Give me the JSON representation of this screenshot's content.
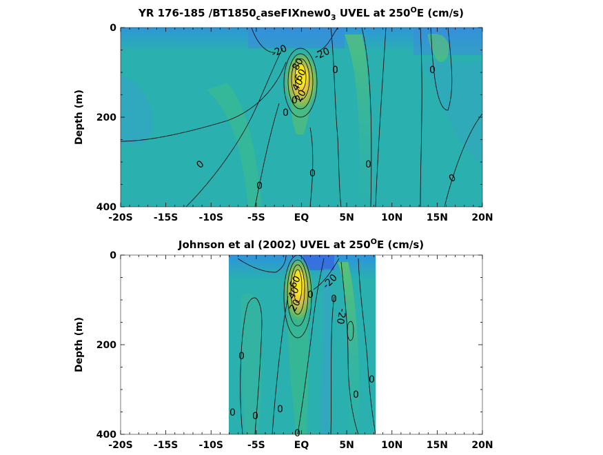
{
  "chart_data": [
    {
      "type": "heatmap",
      "title": "YR 176-185 /BT1850",
      "title_sub": "c",
      "title_mid": "aseFIXnew0",
      "title_sub2": "3",
      "title_tail": " UVEL at 250",
      "title_sup": "O",
      "title_end": "E (cm/s)",
      "ylabel": "Depth (m)",
      "x_tick_labels": [
        "-20S",
        "-15S",
        "-10S",
        "-5S",
        "EQ",
        "5N",
        "10N",
        "15N",
        "20N"
      ],
      "x_ticks": [
        -20,
        -15,
        -10,
        -5,
        0,
        5,
        10,
        15,
        20
      ],
      "y_tick_labels": [
        "0",
        "200",
        "400"
      ],
      "y_ticks": [
        0,
        200,
        400
      ],
      "xlim": [
        -20,
        20
      ],
      "ylim": [
        0,
        400
      ],
      "y_reversed": true,
      "data_extent": [
        -20,
        20
      ],
      "contour_labels": [
        "-20",
        "-20",
        "0",
        "0",
        "0",
        "0",
        "0",
        "0",
        "0",
        "0",
        "0",
        "20",
        "40",
        "60",
        "80"
      ],
      "colormap": "parula",
      "core": {
        "lat": 0,
        "depth": 110,
        "max": 100
      }
    },
    {
      "type": "heatmap",
      "title": "Johnson et al (2002) UVEL at 250",
      "title_sup": "O",
      "title_end": "E (cm/s)",
      "ylabel": "Depth (m)",
      "x_tick_labels": [
        "-20S",
        "-15S",
        "-10S",
        "-5S",
        "EQ",
        "5N",
        "10N",
        "15N",
        "20N"
      ],
      "x_ticks": [
        -20,
        -15,
        -10,
        -5,
        0,
        5,
        10,
        15,
        20
      ],
      "y_tick_labels": [
        "0",
        "200",
        "400"
      ],
      "y_ticks": [
        0,
        200,
        400
      ],
      "xlim": [
        -20,
        20
      ],
      "ylim": [
        0,
        400
      ],
      "y_reversed": true,
      "data_extent": [
        -8,
        8
      ],
      "contour_labels": [
        "-20",
        "-20",
        "0",
        "0",
        "0",
        "0",
        "0",
        "0",
        "0",
        "0",
        "0",
        "20",
        "40",
        "60"
      ],
      "colormap": "parula",
      "core": {
        "lat": 0,
        "depth": 70,
        "max": 90
      }
    }
  ]
}
